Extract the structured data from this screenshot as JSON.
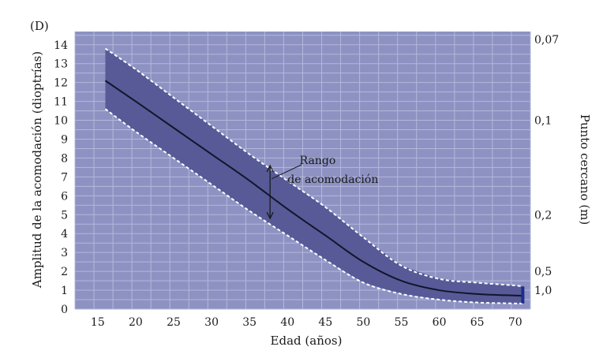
{
  "panel_label": "(D)",
  "chart_data": {
    "type": "line",
    "xlabel": "Edad (años)",
    "ylabel": "Amplitud de la acomodación (dioptrías)",
    "y2label": "Punto cercano (m)",
    "xlim": [
      12,
      72
    ],
    "ylim": [
      0,
      14.7
    ],
    "x_ticks": [
      15,
      20,
      25,
      30,
      35,
      40,
      45,
      50,
      55,
      60,
      65,
      70
    ],
    "y_ticks": [
      0,
      1,
      2,
      3,
      4,
      5,
      6,
      7,
      8,
      9,
      10,
      11,
      12,
      13,
      14
    ],
    "y2_ticks": [
      {
        "label": "0,07",
        "diopters": 14.286
      },
      {
        "label": "0,1",
        "diopters": 10
      },
      {
        "label": "0,2",
        "diopters": 5
      },
      {
        "label": "0,5",
        "diopters": 2
      },
      {
        "label": "1,0",
        "diopters": 1
      }
    ],
    "grid": true,
    "series": [
      {
        "role": "mean",
        "x": [
          16,
          20,
          25,
          30,
          35,
          40,
          45,
          50,
          55,
          60,
          65,
          70,
          71
        ],
        "y": [
          12.1,
          11.0,
          9.6,
          8.2,
          6.8,
          5.3,
          3.9,
          2.5,
          1.5,
          1.0,
          0.8,
          0.72,
          0.7
        ]
      },
      {
        "role": "upper-bound",
        "x": [
          16,
          20,
          25,
          30,
          35,
          40,
          45,
          50,
          55,
          60,
          65,
          70,
          71
        ],
        "y": [
          13.8,
          12.7,
          11.2,
          9.7,
          8.2,
          6.8,
          5.4,
          3.8,
          2.3,
          1.6,
          1.4,
          1.25,
          1.2
        ]
      },
      {
        "role": "lower-bound",
        "x": [
          16,
          20,
          25,
          30,
          35,
          40,
          45,
          50,
          55,
          60,
          65,
          70,
          71
        ],
        "y": [
          10.6,
          9.4,
          8.0,
          6.6,
          5.2,
          3.9,
          2.6,
          1.4,
          0.8,
          0.5,
          0.35,
          0.3,
          0.3
        ]
      }
    ],
    "annotation": {
      "lines": [
        "Rango",
        "de acomodación"
      ],
      "x": 37.7,
      "y_range": [
        4.8,
        7.6
      ]
    },
    "colors": {
      "plot_background": "#8d92c2",
      "band": "#575a97",
      "gridline": "#b4b8db",
      "mean_line": "#14142a",
      "bound_line": "#ffffff",
      "end_marker": "#1e2e8c"
    }
  }
}
